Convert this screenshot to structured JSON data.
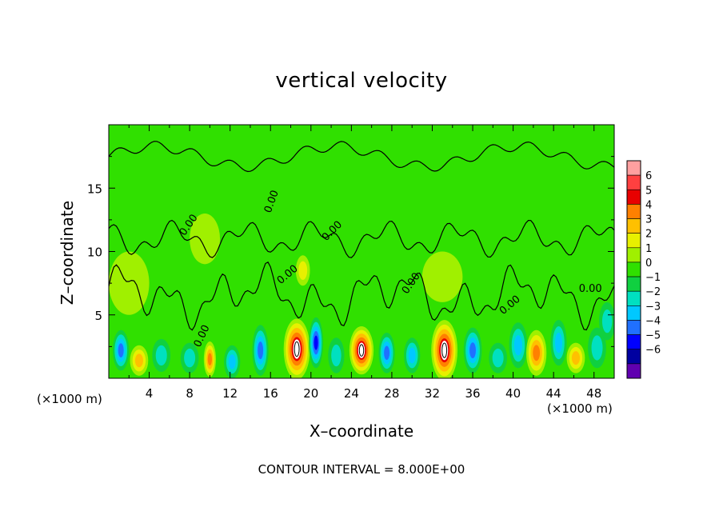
{
  "chart_data": {
    "type": "heatmap",
    "title": "vertical velocity",
    "xlabel": "X–coordinate",
    "ylabel": "Z–coordinate",
    "x_unit_note": "(×1000 m)",
    "footer": "CONTOUR INTERVAL = 8.000E+00",
    "xlim": [
      0,
      50
    ],
    "ylim": [
      0,
      20
    ],
    "x_ticks": [
      4,
      8,
      12,
      16,
      20,
      24,
      28,
      32,
      36,
      40,
      44,
      48
    ],
    "y_ticks": [
      5,
      10,
      15
    ],
    "contour_label": "0.00",
    "colorbar": {
      "levels": [
        "6",
        "5",
        "4",
        "3",
        "2",
        "1",
        "0",
        "−1",
        "−2",
        "−3",
        "−4",
        "−5",
        "−6"
      ],
      "colors": [
        "#ffa0a0",
        "#ff4040",
        "#e80000",
        "#ff8000",
        "#ffc000",
        "#e8f000",
        "#a0f000",
        "#30e000",
        "#10d040",
        "#00e0c0",
        "#00c8ff",
        "#2070ff",
        "#0000ff",
        "#0000a0",
        "#6000b0"
      ]
    },
    "features": [
      {
        "x": 1.2,
        "z": 2.2,
        "value": -4,
        "rx": 0.8,
        "rz": 1.6
      },
      {
        "x": 3.0,
        "z": 1.4,
        "value": 3,
        "rx": 0.9,
        "rz": 1.2
      },
      {
        "x": 5.2,
        "z": 1.8,
        "value": -2,
        "rx": 0.9,
        "rz": 1.3
      },
      {
        "x": 8.0,
        "z": 1.6,
        "value": -2,
        "rx": 0.9,
        "rz": 1.2
      },
      {
        "x": 10.0,
        "z": 1.5,
        "value": 4,
        "rx": 0.6,
        "rz": 1.4
      },
      {
        "x": 12.2,
        "z": 1.3,
        "value": -3,
        "rx": 0.8,
        "rz": 1.3
      },
      {
        "x": 15.0,
        "z": 2.2,
        "value": -4,
        "rx": 0.8,
        "rz": 2.0
      },
      {
        "x": 18.6,
        "z": 2.3,
        "value": 6,
        "rx": 1.3,
        "rz": 2.4
      },
      {
        "x": 20.5,
        "z": 2.8,
        "value": -5,
        "rx": 0.7,
        "rz": 2.0
      },
      {
        "x": 22.5,
        "z": 1.8,
        "value": -2,
        "rx": 0.8,
        "rz": 1.4
      },
      {
        "x": 25.0,
        "z": 2.2,
        "value": 6,
        "rx": 1.2,
        "rz": 1.9
      },
      {
        "x": 27.5,
        "z": 2.0,
        "value": -4,
        "rx": 0.8,
        "rz": 1.6
      },
      {
        "x": 30.0,
        "z": 1.8,
        "value": -3,
        "rx": 0.8,
        "rz": 1.4
      },
      {
        "x": 33.2,
        "z": 2.2,
        "value": 6,
        "rx": 1.3,
        "rz": 2.4
      },
      {
        "x": 36.0,
        "z": 2.2,
        "value": -4,
        "rx": 0.9,
        "rz": 1.8
      },
      {
        "x": 38.5,
        "z": 1.6,
        "value": -2,
        "rx": 0.9,
        "rz": 1.2
      },
      {
        "x": 40.5,
        "z": 2.6,
        "value": -3,
        "rx": 0.9,
        "rz": 1.8
      },
      {
        "x": 42.3,
        "z": 2.0,
        "value": 4,
        "rx": 1.0,
        "rz": 1.8
      },
      {
        "x": 44.5,
        "z": 2.8,
        "value": -3,
        "rx": 0.8,
        "rz": 1.8
      },
      {
        "x": 46.2,
        "z": 1.6,
        "value": 3,
        "rx": 0.9,
        "rz": 1.2
      },
      {
        "x": 48.3,
        "z": 2.4,
        "value": -2,
        "rx": 0.9,
        "rz": 1.6
      },
      {
        "x": 49.3,
        "z": 4.5,
        "value": -2,
        "rx": 0.8,
        "rz": 1.5
      },
      {
        "x": 19.2,
        "z": 8.5,
        "value": 2,
        "rx": 0.7,
        "rz": 1.2
      },
      {
        "x": 9.5,
        "z": 11.0,
        "value": 1,
        "rx": 1.5,
        "rz": 2.0
      },
      {
        "x": 2.0,
        "z": 7.5,
        "value": 1,
        "rx": 2.0,
        "rz": 2.5
      },
      {
        "x": 33.0,
        "z": 8.0,
        "value": 1,
        "rx": 2.0,
        "rz": 2.0
      }
    ]
  }
}
